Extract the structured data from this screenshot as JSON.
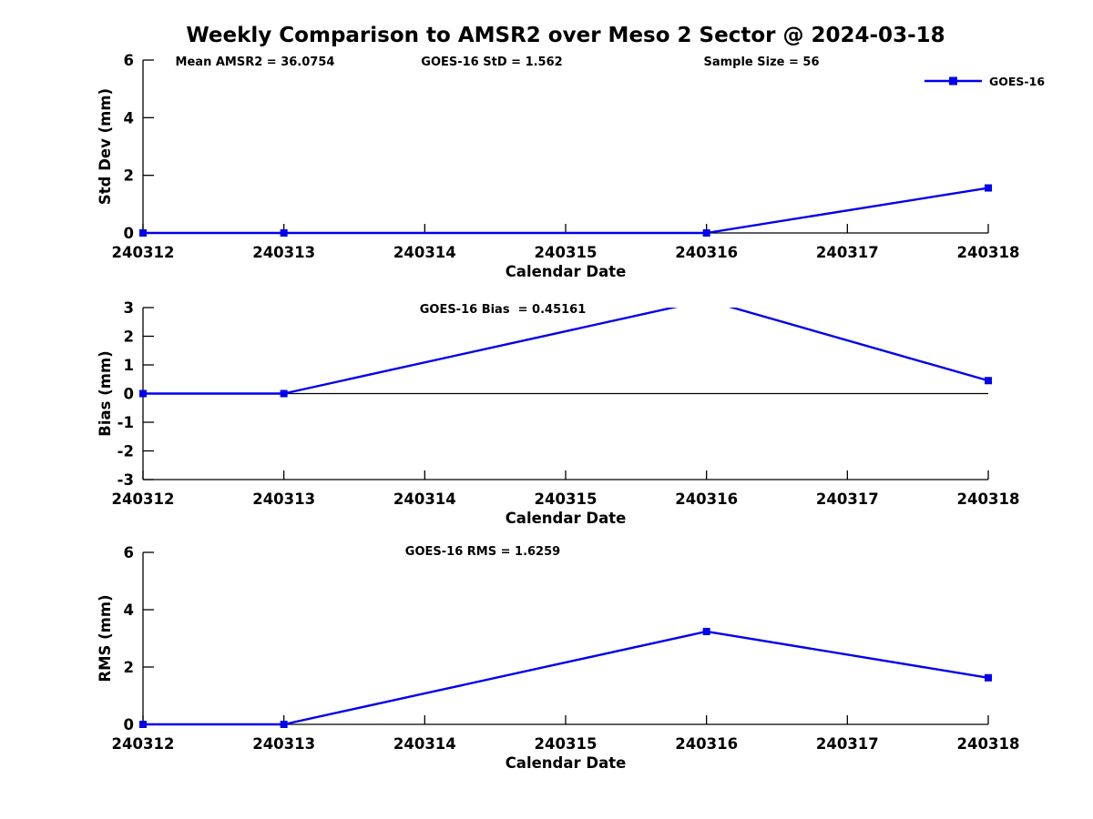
{
  "title": "Weekly Comparison to AMSR2 over Meso 2 Sector @ 2024-03-18",
  "legend": {
    "label": "GOES-16",
    "position": "top-right"
  },
  "colors": {
    "series": "#0000ee",
    "axis": "#000000",
    "background": "#ffffff"
  },
  "chart_data": [
    {
      "type": "line",
      "name": "std_dev_subplot",
      "ylabel": "Std Dev (mm)",
      "xlabel": "Calendar Date",
      "x_tick_labels": [
        "240312",
        "240313",
        "240314",
        "240315",
        "240316",
        "240317",
        "240318"
      ],
      "x_range": [
        240312,
        240318
      ],
      "ylim": [
        0,
        6
      ],
      "yticks": [
        0,
        2,
        4,
        6
      ],
      "grid": false,
      "zero_line": false,
      "annotations": [
        {
          "text": "Mean AMSR2 = 36.0754"
        },
        {
          "text": "GOES-16 StD = 1.562"
        },
        {
          "text": "Sample Size = 56"
        }
      ],
      "series": [
        {
          "name": "GOES-16",
          "marker": "square",
          "x": [
            240312,
            240313,
            240316,
            240318
          ],
          "y": [
            0,
            0,
            0,
            1.562
          ]
        }
      ]
    },
    {
      "type": "line",
      "name": "bias_subplot",
      "ylabel": "Bias (mm)",
      "xlabel": "Calendar Date",
      "x_tick_labels": [
        "240312",
        "240313",
        "240314",
        "240315",
        "240316",
        "240317",
        "240318"
      ],
      "x_range": [
        240312,
        240318
      ],
      "ylim": [
        -3,
        3
      ],
      "yticks": [
        -3,
        -2,
        -1,
        0,
        1,
        2,
        3
      ],
      "grid": false,
      "zero_line": true,
      "annotations": [
        {
          "text": "GOES-16 Bias  = 0.45161"
        }
      ],
      "series": [
        {
          "name": "GOES-16",
          "marker": "square",
          "x": [
            240312,
            240313,
            240316,
            240318
          ],
          "y": [
            0,
            0,
            3.26,
            0.45161
          ],
          "note": "peak at 240316 exceeds y-axis limit and is clipped at 3"
        }
      ]
    },
    {
      "type": "line",
      "name": "rms_subplot",
      "ylabel": "RMS (mm)",
      "xlabel": "Calendar Date",
      "x_tick_labels": [
        "240312",
        "240313",
        "240314",
        "240315",
        "240316",
        "240317",
        "240318"
      ],
      "x_range": [
        240312,
        240318
      ],
      "ylim": [
        0,
        6
      ],
      "yticks": [
        0,
        2,
        4,
        6
      ],
      "grid": false,
      "zero_line": false,
      "annotations": [
        {
          "text": "GOES-16 RMS = 1.6259"
        }
      ],
      "series": [
        {
          "name": "GOES-16",
          "marker": "square",
          "x": [
            240312,
            240313,
            240316,
            240318
          ],
          "y": [
            0,
            0,
            3.24,
            1.6259
          ]
        }
      ]
    }
  ]
}
